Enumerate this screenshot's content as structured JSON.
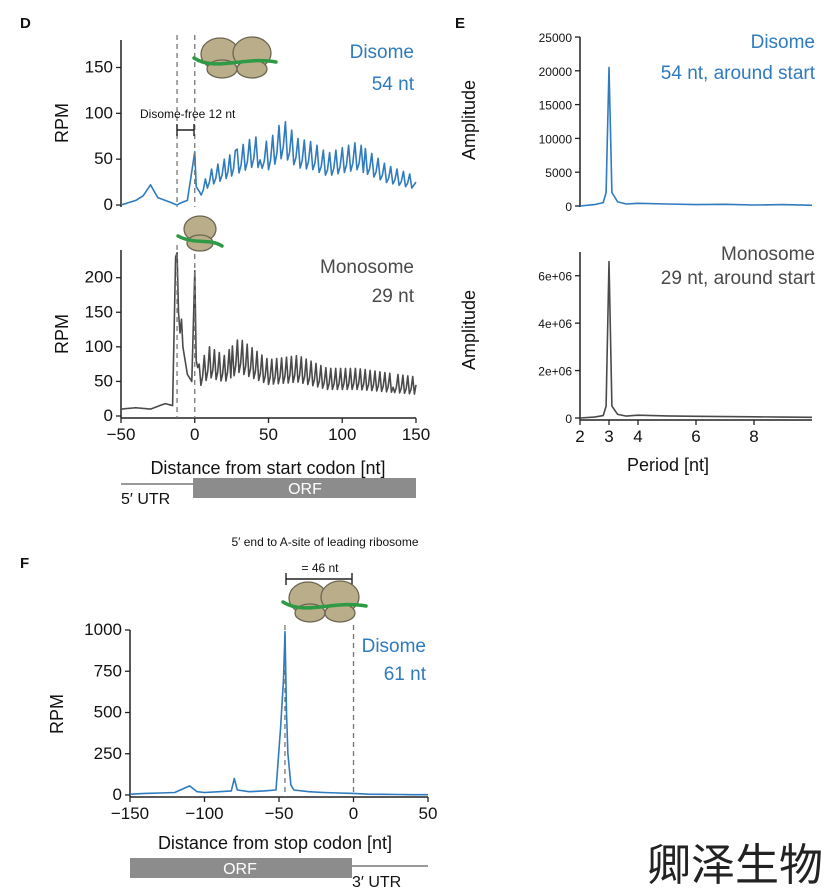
{
  "colors": {
    "disome": "#2f7bbf",
    "monosome": "#4a4a4a",
    "mrna": "#2f9a45",
    "ribosome_fill": "#b9ad8a",
    "ribosome_stroke": "#6b6550",
    "bar": "#8c8c8c",
    "guide": "#777777"
  },
  "watermark": "卿泽生物",
  "icons": [
    "disome-ribosome-icon",
    "monosome-ribosome-icon"
  ],
  "chart_data": [
    {
      "panel": "D",
      "type": "line",
      "series_label": "Disome",
      "series_sublabel": "54 nt",
      "ylabel": "RPM",
      "ylim": [
        0,
        180
      ],
      "yticks": [
        0,
        50,
        100,
        150
      ],
      "xlim": [
        -50,
        150
      ],
      "annotation": "Disome-free 12 nt",
      "guides_x": [
        -12,
        0
      ],
      "x": [
        -50,
        -40,
        -35,
        -30,
        -25,
        -20,
        -15,
        -12,
        -10,
        -5,
        0,
        1,
        3,
        10,
        20,
        25,
        30,
        40,
        50,
        60,
        70,
        80,
        90,
        100,
        110,
        120,
        130,
        140,
        150
      ],
      "y": [
        0,
        5,
        10,
        22,
        8,
        5,
        2,
        0,
        2,
        5,
        58,
        20,
        12,
        30,
        40,
        45,
        50,
        60,
        55,
        75,
        58,
        55,
        45,
        50,
        55,
        45,
        35,
        30,
        25
      ]
    },
    {
      "panel": "D",
      "type": "line",
      "series_label": "Monosome",
      "series_sublabel": "29 nt",
      "ylabel": "RPM",
      "ylim": [
        0,
        240
      ],
      "yticks": [
        0,
        50,
        100,
        150,
        200
      ],
      "xlim": [
        -50,
        150
      ],
      "xticks": [
        -50,
        0,
        50,
        100,
        150
      ],
      "xlabel": "Distance from start codon [nt]",
      "guides_x": [
        -12,
        0
      ],
      "gene_bar": {
        "left_label": "5′ UTR",
        "right_label": "ORF",
        "boundary": 0
      },
      "x": [
        -50,
        -40,
        -30,
        -20,
        -15,
        -13,
        -12,
        -11,
        -10,
        -9,
        -8,
        -5,
        -2,
        0,
        1,
        3,
        10,
        20,
        30,
        50,
        70,
        90,
        110,
        130,
        150
      ],
      "y": [
        10,
        12,
        10,
        18,
        15,
        230,
        236,
        150,
        120,
        140,
        100,
        60,
        50,
        210,
        80,
        60,
        80,
        70,
        90,
        65,
        70,
        55,
        55,
        50,
        45
      ]
    },
    {
      "panel": "E",
      "type": "line",
      "series_label": "Disome",
      "series_sublabel": "54 nt, around start",
      "ylabel": "Amplitude",
      "ylim": [
        0,
        25000
      ],
      "yticks": [
        0,
        5000,
        10000,
        15000,
        20000,
        25000
      ],
      "xlim": [
        2,
        10
      ],
      "x": [
        2.0,
        2.5,
        2.8,
        2.9,
        3.0,
        3.1,
        3.3,
        3.6,
        4.0,
        5.0,
        6.0,
        7.0,
        8.0,
        9.0,
        10.0
      ],
      "y": [
        0,
        200,
        500,
        2000,
        20500,
        2000,
        600,
        300,
        400,
        300,
        200,
        250,
        150,
        200,
        100
      ]
    },
    {
      "panel": "E",
      "type": "line",
      "series_label": "Monosome",
      "series_sublabel": "29 nt, around start",
      "ylabel": "Amplitude",
      "ylim": [
        0,
        7000000
      ],
      "yticks": [
        0,
        2000000,
        4000000,
        6000000
      ],
      "ytick_labels": [
        "0",
        "2e+06",
        "4e+06",
        "6e+06"
      ],
      "xlim": [
        2,
        10
      ],
      "xticks": [
        2,
        3,
        4,
        6,
        8
      ],
      "xlabel": "Period [nt]",
      "x": [
        2.0,
        2.5,
        2.8,
        2.9,
        3.0,
        3.1,
        3.3,
        3.6,
        4.0,
        5.0,
        6.0,
        7.0,
        8.0,
        9.0,
        10.0
      ],
      "y": [
        0,
        40000,
        100000,
        500000,
        6600000,
        500000,
        150000,
        80000,
        120000,
        90000,
        70000,
        60000,
        50000,
        40000,
        30000
      ]
    },
    {
      "panel": "F",
      "type": "line",
      "series_label": "Disome",
      "series_sublabel": "61 nt",
      "ylabel": "RPM",
      "ylim": [
        0,
        1000
      ],
      "yticks": [
        0,
        250,
        500,
        750,
        1000
      ],
      "xlim": [
        -150,
        50
      ],
      "xticks": [
        -150,
        -100,
        -50,
        0,
        50
      ],
      "xlabel": "Distance from stop codon [nt]",
      "annotation": "5′ end to A-site of leading ribosome",
      "annotation2": "= 46 nt",
      "guides_x": [
        -46,
        0
      ],
      "gene_bar": {
        "left_label": "ORF",
        "right_label": "3′ UTR",
        "boundary": 0
      },
      "x": [
        -150,
        -140,
        -130,
        -120,
        -110,
        -105,
        -100,
        -90,
        -82,
        -80,
        -78,
        -70,
        -60,
        -52,
        -49,
        -47,
        -46,
        -45,
        -44,
        -42,
        -40,
        -30,
        -20,
        -10,
        0,
        10,
        20,
        30,
        40,
        50
      ],
      "y": [
        5,
        10,
        12,
        15,
        55,
        20,
        15,
        20,
        25,
        100,
        30,
        20,
        25,
        30,
        400,
        700,
        990,
        500,
        250,
        60,
        30,
        20,
        15,
        12,
        10,
        5,
        4,
        3,
        2,
        2
      ]
    }
  ]
}
